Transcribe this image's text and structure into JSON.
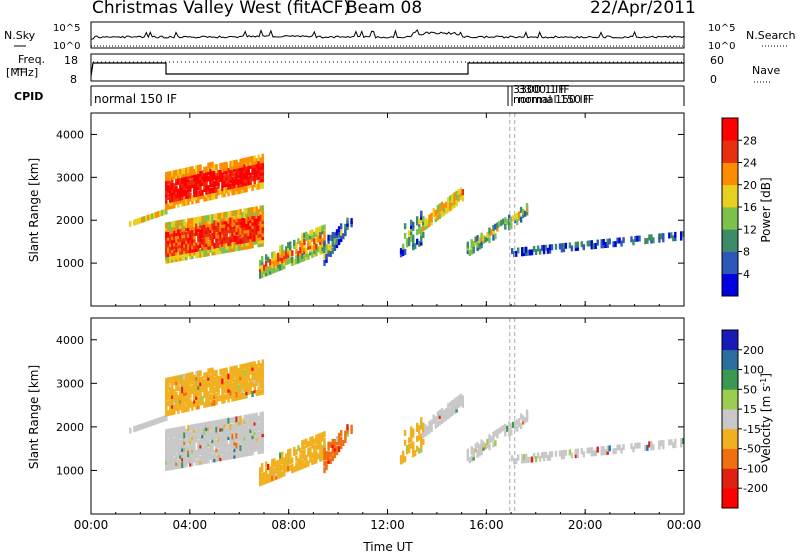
{
  "header": {
    "title": "Christmas Valley West (fitACF)",
    "beam": "Beam 08",
    "date": "22/Apr/2011"
  },
  "top_panels": {
    "nsky_label": "N.Sky",
    "nsky_ticks": [
      "10^5",
      "10^0"
    ],
    "nsearch_label": "N.Search",
    "nsearch_ticks": [
      "10^5",
      "10^0"
    ],
    "freq_label": "Freq.",
    "freq_unit": "[MHz]",
    "freq_ticks": [
      "18",
      "8"
    ],
    "nave_label": "Nave",
    "nave_ticks": [
      "60",
      "0"
    ],
    "cpid_label": "CPID",
    "cpid_main": "normal 150 IF",
    "cpid_overlap_a": "3300 1 IF",
    "cpid_overlap_b": "normal 150 IF"
  },
  "chart_data": [
    {
      "type": "heatmap",
      "name": "power",
      "ylabel": "Slant Range [km]",
      "ylim": [
        0,
        4500
      ],
      "yticks": [
        1000,
        2000,
        3000,
        4000
      ],
      "colorbar_label": "Power [dB]",
      "colorbar_ticks": [
        "4",
        "8",
        "12",
        "16",
        "20",
        "24",
        "28"
      ],
      "colors": [
        "#0000e0",
        "#2c56b8",
        "#3c8c6a",
        "#7cc14a",
        "#e8d020",
        "#ff8c00",
        "#e83010",
        "#ff0000"
      ]
    },
    {
      "type": "heatmap",
      "name": "velocity",
      "ylabel": "Slant Range [km]",
      "ylim": [
        0,
        4500
      ],
      "yticks": [
        1000,
        2000,
        3000,
        4000
      ],
      "xlabel": "Time UT",
      "xticks": [
        "00:00",
        "04:00",
        "08:00",
        "12:00",
        "16:00",
        "20:00",
        "00:00"
      ],
      "colorbar_label": "Velocity [m s",
      "colorbar_label_sup": "-1",
      "colorbar_label_end": "]",
      "colorbar_ticks": [
        "200",
        "100",
        "50",
        "15",
        "-15",
        "-50",
        "-100",
        "-200"
      ],
      "colors": [
        "#1a1ab8",
        "#2a6ea0",
        "#3a9850",
        "#9acd50",
        "#c8c8c8",
        "#f0b020",
        "#f07010",
        "#e02010",
        "#ff0000"
      ]
    }
  ]
}
